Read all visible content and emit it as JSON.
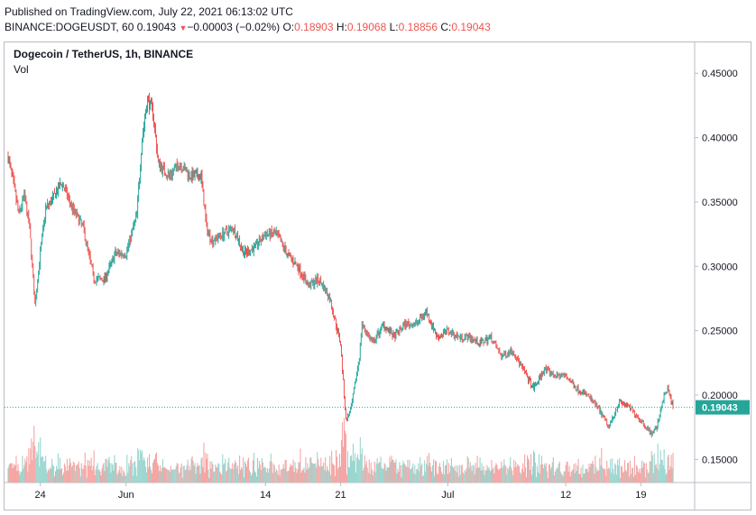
{
  "header": {
    "published": "Published on TradingView.com, July 22, 2021 06:13:02 UTC",
    "symbol": "BINANCE:DOGEUSDT, 60",
    "last": "0.19043",
    "change_arrow": "▼",
    "change": "−0.00003 (−0.02%)",
    "o_label": "O:",
    "o_value": "0.18903",
    "h_label": "H:",
    "h_value": "0.19068",
    "l_label": "L:",
    "l_value": "0.18856",
    "c_label": "C:",
    "c_value": "0.19043"
  },
  "legend": {
    "title": "Dogecoin / TetherUS, 1h, BINANCE",
    "volume": "Vol"
  },
  "colors": {
    "up": "#26a69a",
    "down": "#ef5350",
    "up_vol": "#9ad5cf",
    "down_vol": "#f5a6a4",
    "axis_text": "#131722",
    "border": "#b9bcc4",
    "last_price": "#26a69a"
  },
  "chart_data": {
    "type": "candlestick",
    "interval": "1h",
    "y_axis_ticks": [
      "0.45000",
      "0.40000",
      "0.35000",
      "0.30000",
      "0.25000",
      "0.20000",
      "0.15000"
    ],
    "y_tick_values": [
      0.45,
      0.4,
      0.35,
      0.3,
      0.25,
      0.2,
      0.15
    ],
    "ylim": [
      0.132,
      0.474
    ],
    "x_axis_ticks": [
      "24",
      "Jun",
      "14",
      "21",
      "Jul",
      "12",
      "19"
    ],
    "x_tick_dates": [
      "2021-05-24",
      "2021-06-01",
      "2021-06-14",
      "2021-06-21",
      "2021-07-01",
      "2021-07-12",
      "2021-07-19"
    ],
    "date_range": [
      "2021-05-21",
      "2021-07-22"
    ],
    "last_price": 0.19043,
    "last_price_label": "0.19043",
    "price_path": [
      [
        "2021-05-21",
        0.385
      ],
      [
        "2021-05-21T14",
        0.36
      ],
      [
        "2021-05-22",
        0.34
      ],
      [
        "2021-05-22T12",
        0.355
      ],
      [
        "2021-05-23",
        0.33
      ],
      [
        "2021-05-23T12",
        0.27
      ],
      [
        "2021-05-24",
        0.31
      ],
      [
        "2021-05-24T12",
        0.345
      ],
      [
        "2021-05-25",
        0.35
      ],
      [
        "2021-05-26",
        0.365
      ],
      [
        "2021-05-27",
        0.345
      ],
      [
        "2021-05-28",
        0.33
      ],
      [
        "2021-05-29",
        0.29
      ],
      [
        "2021-05-30",
        0.29
      ],
      [
        "2021-05-31",
        0.31
      ],
      [
        "2021-06-01",
        0.31
      ],
      [
        "2021-06-02",
        0.34
      ],
      [
        "2021-06-02T12",
        0.4
      ],
      [
        "2021-06-03",
        0.43
      ],
      [
        "2021-06-03T12",
        0.42
      ],
      [
        "2021-06-04",
        0.38
      ],
      [
        "2021-06-05",
        0.37
      ],
      [
        "2021-06-06",
        0.38
      ],
      [
        "2021-06-07",
        0.37
      ],
      [
        "2021-06-08",
        0.37
      ],
      [
        "2021-06-08T12",
        0.33
      ],
      [
        "2021-06-09",
        0.32
      ],
      [
        "2021-06-10",
        0.325
      ],
      [
        "2021-06-11",
        0.33
      ],
      [
        "2021-06-12",
        0.31
      ],
      [
        "2021-06-13",
        0.315
      ],
      [
        "2021-06-14",
        0.325
      ],
      [
        "2021-06-15",
        0.325
      ],
      [
        "2021-06-16",
        0.31
      ],
      [
        "2021-06-17",
        0.3
      ],
      [
        "2021-06-18",
        0.285
      ],
      [
        "2021-06-19",
        0.29
      ],
      [
        "2021-06-20",
        0.275
      ],
      [
        "2021-06-21",
        0.24
      ],
      [
        "2021-06-21T12",
        0.18
      ],
      [
        "2021-06-22",
        0.19
      ],
      [
        "2021-06-22T18",
        0.23
      ],
      [
        "2021-06-23",
        0.255
      ],
      [
        "2021-06-24",
        0.24
      ],
      [
        "2021-06-25",
        0.255
      ],
      [
        "2021-06-26",
        0.245
      ],
      [
        "2021-06-27",
        0.255
      ],
      [
        "2021-06-28",
        0.255
      ],
      [
        "2021-06-29",
        0.265
      ],
      [
        "2021-06-30",
        0.245
      ],
      [
        "2021-07-01",
        0.25
      ],
      [
        "2021-07-02",
        0.245
      ],
      [
        "2021-07-03",
        0.245
      ],
      [
        "2021-07-04",
        0.24
      ],
      [
        "2021-07-05",
        0.245
      ],
      [
        "2021-07-06",
        0.23
      ],
      [
        "2021-07-07",
        0.235
      ],
      [
        "2021-07-08",
        0.22
      ],
      [
        "2021-07-09",
        0.205
      ],
      [
        "2021-07-10",
        0.22
      ],
      [
        "2021-07-11",
        0.215
      ],
      [
        "2021-07-12",
        0.215
      ],
      [
        "2021-07-13",
        0.205
      ],
      [
        "2021-07-14",
        0.2
      ],
      [
        "2021-07-15",
        0.19
      ],
      [
        "2021-07-16",
        0.175
      ],
      [
        "2021-07-17",
        0.195
      ],
      [
        "2021-07-18",
        0.19
      ],
      [
        "2021-07-19",
        0.18
      ],
      [
        "2021-07-20",
        0.17
      ],
      [
        "2021-07-20T12",
        0.175
      ],
      [
        "2021-07-21",
        0.195
      ],
      [
        "2021-07-21T12",
        0.205
      ],
      [
        "2021-07-22",
        0.19043
      ]
    ]
  }
}
